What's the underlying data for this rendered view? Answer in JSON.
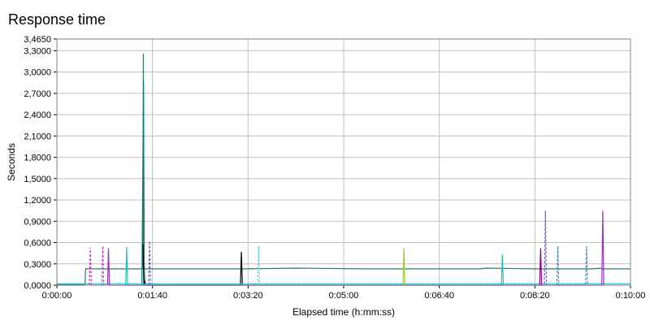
{
  "chart_data": {
    "type": "line",
    "title": "Response time",
    "xlabel": "Elapsed time (h:mm:ss)",
    "ylabel": "Seconds",
    "xlim": [
      0,
      600
    ],
    "ylim": [
      0,
      3.465
    ],
    "x_ticks": [
      0,
      100,
      200,
      300,
      400,
      500,
      600
    ],
    "x_tick_labels": [
      "0:00:00",
      "0:01:40",
      "0:03:20",
      "0:05:00",
      "0:06:40",
      "0:08:20",
      "0:10:00"
    ],
    "y_ticks": [
      0,
      0.3,
      0.6,
      0.9,
      1.2,
      1.5,
      1.8,
      2.1,
      2.4,
      2.7,
      3.0,
      3.3,
      3.465
    ],
    "y_tick_labels": [
      "0,0000",
      "0,3000",
      "0,6000",
      "0,9000",
      "1,2000",
      "1,5000",
      "1,8000",
      "2,1000",
      "2,4000",
      "2,7000",
      "3,0000",
      "3,3000",
      "3,4650"
    ],
    "grid": true,
    "series": [
      {
        "color": "#2e7d5b",
        "style": "solid",
        "x": [
          0,
          29.5,
          30,
          90,
          90.4,
          90.8,
          91.2,
          92,
          93,
          200,
          250,
          320,
          443,
          449,
          500,
          560,
          570,
          571,
          572,
          600
        ],
        "y": [
          0.01,
          0.01,
          0.23,
          0.23,
          3.26,
          2.1,
          0.24,
          0.23,
          0.23,
          0.23,
          0.24,
          0.23,
          0.23,
          0.24,
          0.23,
          0.23,
          0.24,
          0.22,
          0.23,
          0.23
        ]
      },
      {
        "color": "#008080",
        "style": "solid",
        "x": [
          89,
          90.6,
          91,
          91.4,
          92
        ],
        "y": [
          0,
          2.87,
          1.35,
          0.3,
          0
        ]
      },
      {
        "color": "#000000",
        "style": "solid",
        "x": [
          90,
          91,
          92,
          93,
          192,
          193,
          194
        ],
        "y": [
          0.58,
          0.0,
          0.05,
          0.0,
          0.0,
          0.47,
          0.0
        ]
      },
      {
        "color": "#00c8e6",
        "style": "solid",
        "x": [
          0,
          100,
          200,
          300,
          400,
          500,
          600
        ],
        "y": [
          0.02,
          0.02,
          0.02,
          0.02,
          0.02,
          0.02,
          0.02
        ]
      },
      {
        "color": "#cc33cc",
        "style": "dashed",
        "x": [
          34,
          35,
          36,
          47,
          48,
          49
        ],
        "y": [
          0,
          0.53,
          0,
          0,
          0.55,
          0
        ]
      },
      {
        "color": "#9b30c8",
        "style": "solid",
        "x": [
          53,
          54,
          55,
          570,
          571,
          572
        ],
        "y": [
          0,
          0.52,
          0,
          0,
          1.05,
          0
        ]
      },
      {
        "color": "#8b008b",
        "style": "solid",
        "x": [
          505,
          506,
          507
        ],
        "y": [
          0,
          0.52,
          0
        ]
      },
      {
        "color": "#20c0c0",
        "style": "solid",
        "x": [
          72,
          73,
          74,
          465,
          466,
          467
        ],
        "y": [
          0,
          0.54,
          0,
          0,
          0.43,
          0
        ]
      },
      {
        "color": "#6a5acd",
        "style": "dashed",
        "x": [
          96,
          97,
          98,
          510,
          511,
          512
        ],
        "y": [
          0,
          0.62,
          0,
          0,
          1.05,
          0
        ]
      },
      {
        "color": "#4fd8e8",
        "style": "dashed",
        "x": [
          210,
          211,
          212
        ],
        "y": [
          0,
          0.55,
          0
        ]
      },
      {
        "color": "#9acd32",
        "style": "solid",
        "x": [
          362,
          363,
          364
        ],
        "y": [
          0,
          0.52,
          0
        ]
      },
      {
        "color": "#4682b4",
        "style": "dashed",
        "x": [
          523,
          524,
          525,
          553,
          554,
          555
        ],
        "y": [
          0,
          0.55,
          0,
          0,
          0.55,
          0
        ]
      }
    ]
  }
}
